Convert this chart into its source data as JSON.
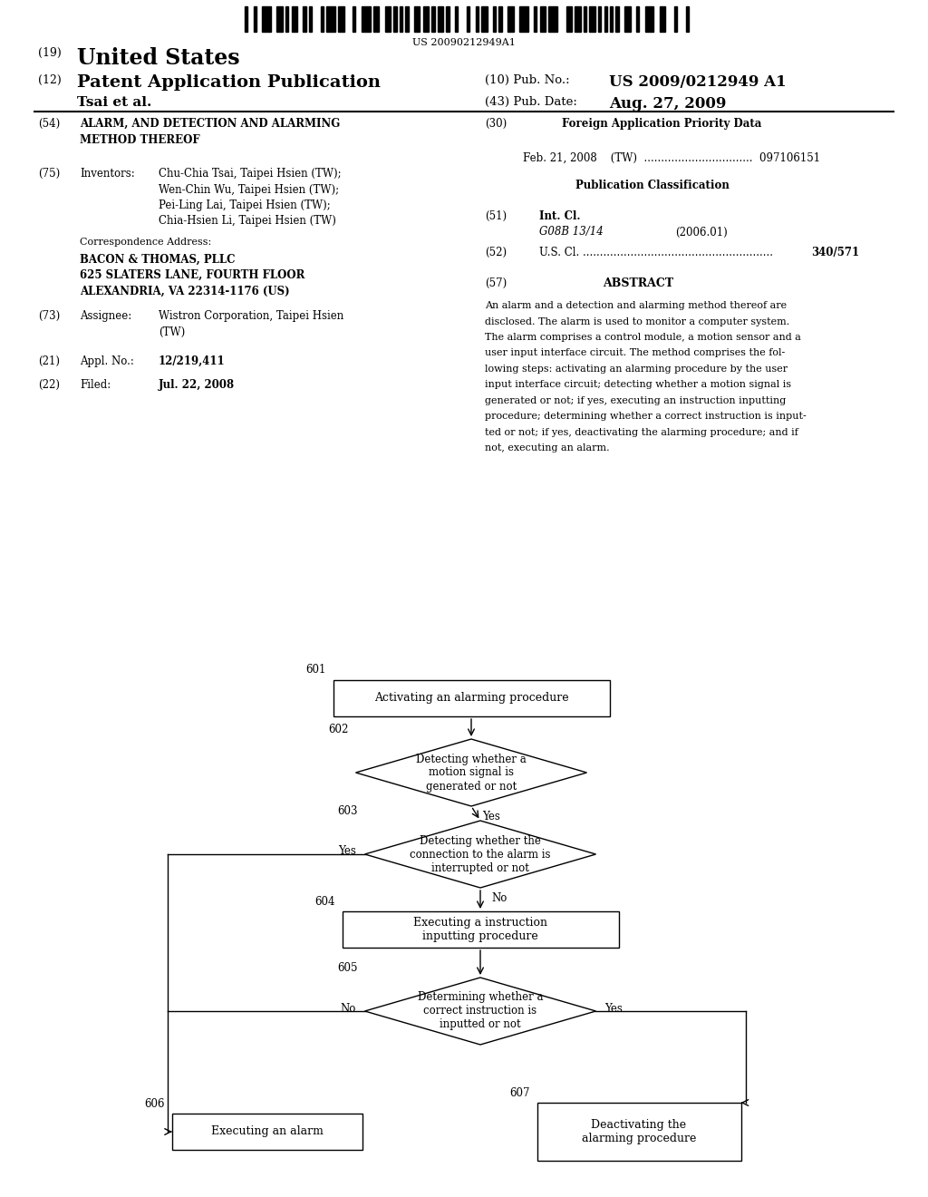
{
  "bg_color": "#ffffff",
  "barcode_text": "US 20090212949A1",
  "patent_number": "US 2009/0212949 A1",
  "pub_date": "Aug. 27, 2009",
  "header_left1_num": "(19)",
  "header_left1_text": "United States",
  "header_left2_num": "(12)",
  "header_left2_text": "Patent Application Publication",
  "header_author": "Tsai et al.",
  "header_right1_num": "(10) Pub. No.:",
  "header_right1_text": "US 2009/0212949 A1",
  "header_right2_num": "(43) Pub. Date:",
  "header_right2_text": "Aug. 27, 2009",
  "s54_num": "(54)",
  "s54_text1": "ALARM, AND DETECTION AND ALARMING",
  "s54_text2": "METHOD THEREOF",
  "s75_num": "(75)",
  "s75_label": "Inventors:",
  "s75_inv1": "Chu-Chia Tsai, Taipei Hsien (TW);",
  "s75_inv2": "Wen-Chin Wu, Taipei Hsien (TW);",
  "s75_inv3": "Pei-Ling Lai, Taipei Hsien (TW);",
  "s75_inv4": "Chia-Hsien Li, Taipei Hsien (TW)",
  "corr_label": "Correspondence Address:",
  "corr1": "BACON & THOMAS, PLLC",
  "corr2": "625 SLATERS LANE, FOURTH FLOOR",
  "corr3": "ALEXANDRIA, VA 22314-1176 (US)",
  "s73_num": "(73)",
  "s73_label": "Assignee:",
  "s73_text1": "Wistron Corporation, Taipei Hsien",
  "s73_text2": "(TW)",
  "s21_num": "(21)",
  "s21_label": "Appl. No.:",
  "s21_text": "12/219,411",
  "s22_num": "(22)",
  "s22_label": "Filed:",
  "s22_text": "Jul. 22, 2008",
  "s30_num": "(30)",
  "s30_title": "Foreign Application Priority Data",
  "s30_content": "Feb. 21, 2008    (TW)  ................................  097106151",
  "pub_class": "Publication Classification",
  "s51_num": "(51)",
  "s51_label": "Int. Cl.",
  "s51_class": "G08B 13/14",
  "s51_year": "(2006.01)",
  "s52_num": "(52)",
  "s52_label": "U.S. Cl. ........................................................",
  "s52_text": "340/571",
  "s57_num": "(57)",
  "s57_title": "ABSTRACT",
  "abstract_lines": [
    "An alarm and a detection and alarming method thereof are",
    "disclosed. The alarm is used to monitor a computer system.",
    "The alarm comprises a control module, a motion sensor and a",
    "user input interface circuit. The method comprises the fol-",
    "lowing steps: activating an alarming procedure by the user",
    "input interface circuit; detecting whether a motion signal is",
    "generated or not; if yes, executing an instruction inputting",
    "procedure; determining whether a correct instruction is input-",
    "ted or not; if yes, deactivating the alarming procedure; and if",
    "not, executing an alarm."
  ],
  "fc_node601_text": "Activating an alarming procedure",
  "fc_node602_text": "Detecting whether a\nmotion signal is\ngenerated or not",
  "fc_node603_text": "Detecting whether the\nconnection to the alarm is\ninterrupted or not",
  "fc_node604_text": "Executing a instruction\ninputting procedure",
  "fc_node605_text": "Determining whether a\ncorrect instruction is\ninputted or not",
  "fc_node606_text": "Executing an alarm",
  "fc_node607_text": "Deactivating the\nalarming procedure",
  "fc_yes": "Yes",
  "fc_no": "No"
}
